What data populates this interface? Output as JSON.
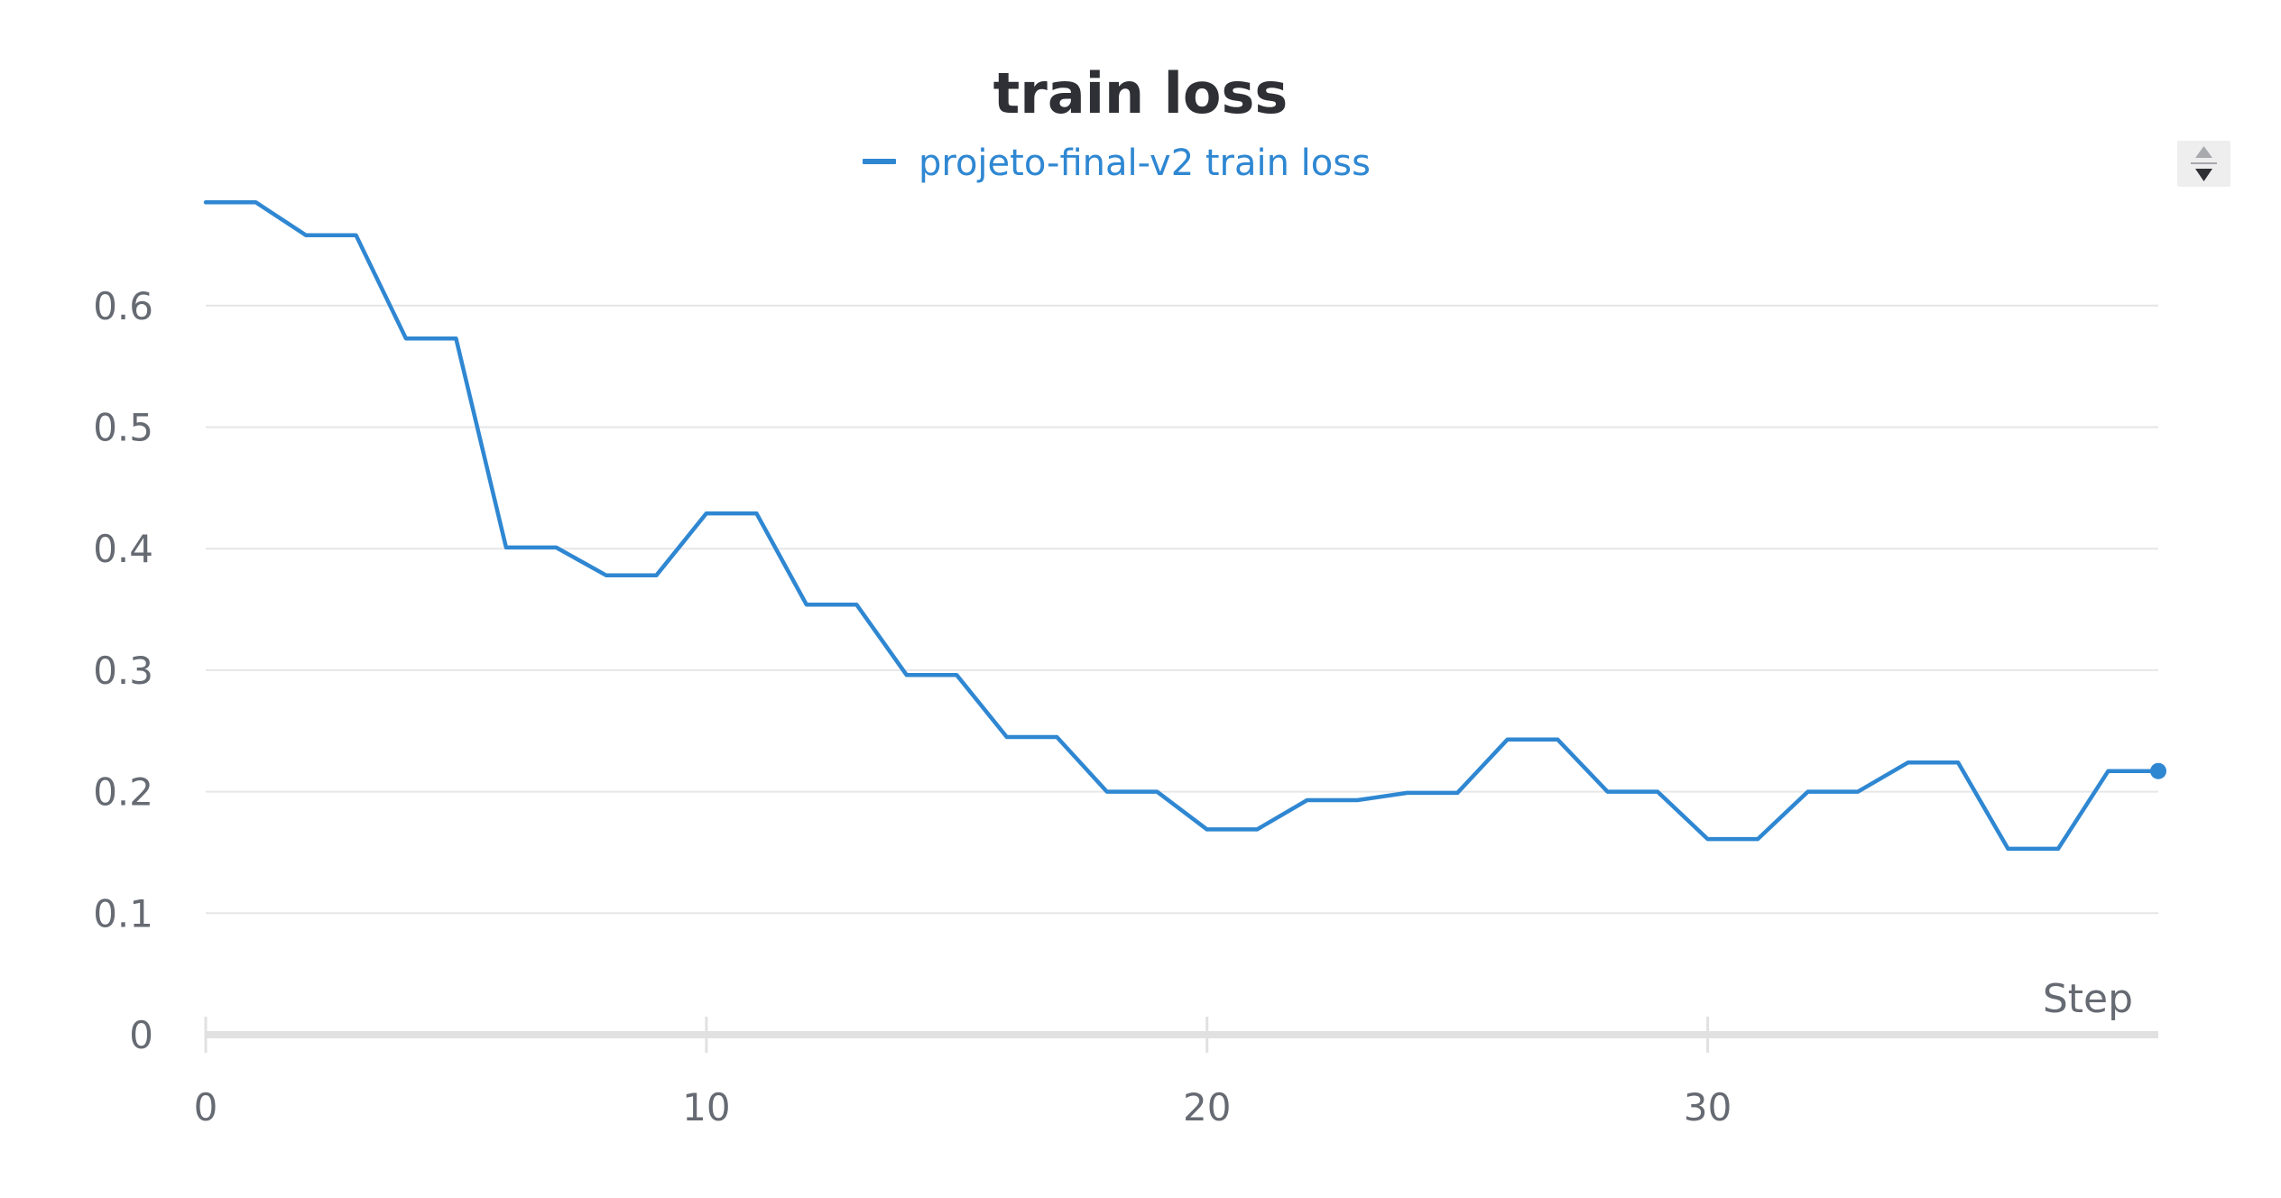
{
  "chart_data": {
    "type": "line",
    "title": "train loss",
    "xlabel": "Step",
    "ylabel": "",
    "xlim": [
      0,
      39
    ],
    "ylim": [
      0,
      0.7
    ],
    "x_ticks": [
      "0",
      "10",
      "20",
      "30"
    ],
    "y_ticks": [
      "0",
      "0.1",
      "0.2",
      "0.3",
      "0.4",
      "0.5",
      "0.6"
    ],
    "grid": true,
    "legend_position": "top-center",
    "series": [
      {
        "name": "projeto-final-v2 train loss",
        "color": "#2f87d2",
        "x": [
          0,
          1,
          2,
          3,
          4,
          5,
          6,
          7,
          8,
          9,
          10,
          11,
          12,
          13,
          14,
          15,
          16,
          17,
          18,
          19,
          20,
          21,
          22,
          23,
          24,
          25,
          26,
          27,
          28,
          29,
          30,
          31,
          32,
          33,
          34,
          35,
          36,
          37,
          38,
          39
        ],
        "y": [
          0.685,
          0.685,
          0.658,
          0.658,
          0.573,
          0.573,
          0.401,
          0.401,
          0.378,
          0.378,
          0.429,
          0.429,
          0.354,
          0.354,
          0.296,
          0.296,
          0.245,
          0.245,
          0.2,
          0.2,
          0.169,
          0.169,
          0.193,
          0.193,
          0.199,
          0.199,
          0.243,
          0.243,
          0.2,
          0.2,
          0.161,
          0.161,
          0.2,
          0.2,
          0.224,
          0.224,
          0.153,
          0.153,
          0.217,
          0.217
        ]
      }
    ]
  },
  "controls": {
    "legend_scroll_icon": "up-down-arrows-icon"
  }
}
